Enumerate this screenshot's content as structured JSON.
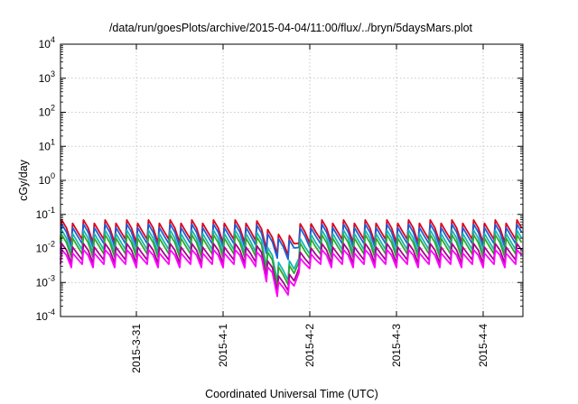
{
  "chart_data": {
    "type": "line",
    "title": "/data/run/goesPlots/archive/2015-04-04/11:00/flux/../bryn/5daysMars.plot",
    "xlabel": "Coordinated Universal Time (UTC)",
    "ylabel": "cGy/day",
    "yscale": "log",
    "ylim": [
      0.0001,
      10000
    ],
    "y_ticks": [
      {
        "base": "10",
        "exp": "4"
      },
      {
        "base": "10",
        "exp": "3"
      },
      {
        "base": "10",
        "exp": "2"
      },
      {
        "base": "10",
        "exp": "1"
      },
      {
        "base": "10",
        "exp": "0"
      },
      {
        "base": "10",
        "exp": "-1"
      },
      {
        "base": "10",
        "exp": "-2"
      },
      {
        "base": "10",
        "exp": "-3"
      },
      {
        "base": "10",
        "exp": "-4"
      }
    ],
    "xlim": [
      "2015-03-30 03:00",
      "2015-04-04 11:00"
    ],
    "x_ticks": [
      "2015-3-31",
      "2015-4-1",
      "2015-4-2",
      "2015-4-3",
      "2015-4-4"
    ],
    "grid": true,
    "dip_time": "2015-04-01 16:00",
    "series": [
      {
        "color": "#e0001a",
        "peak": 0.06,
        "trough": 0.016
      },
      {
        "color": "#1f5fd6",
        "peak": 0.045,
        "trough": 0.012
      },
      {
        "color": "#18b5b5",
        "peak": 0.03,
        "trough": 0.008
      },
      {
        "color": "#2fa82f",
        "peak": 0.022,
        "trough": 0.006
      },
      {
        "color": "#a8008f",
        "peak": 0.012,
        "trough": 0.004
      },
      {
        "color": "#ff00ff",
        "peak": 0.008,
        "trough": 0.003
      }
    ]
  }
}
